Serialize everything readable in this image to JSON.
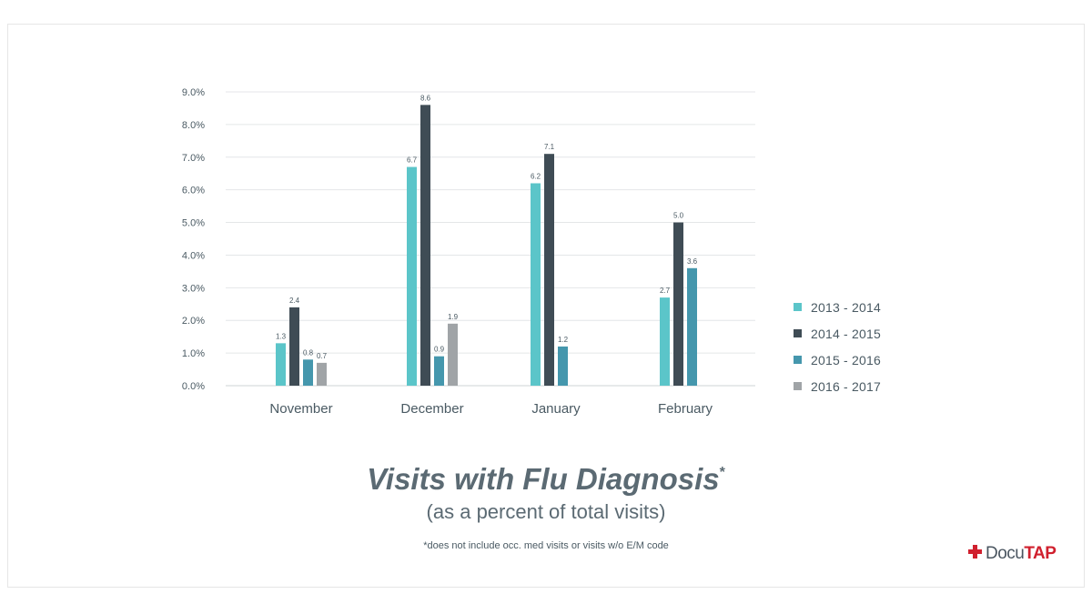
{
  "chart_data": {
    "type": "bar",
    "title": "Visits with Flu Diagnosis",
    "title_mark": "*",
    "subtitle": "(as a percent of total visits)",
    "footnote": "*does not include occ. med visits or visits w/o E/M code",
    "categories": [
      "November",
      "December",
      "January",
      "February"
    ],
    "ylim": [
      0,
      9
    ],
    "yticks": [
      "0.0%",
      "1.0%",
      "2.0%",
      "3.0%",
      "4.0%",
      "5.0%",
      "6.0%",
      "7.0%",
      "8.0%",
      "9.0%"
    ],
    "grid": true,
    "legend_position": "right",
    "series": [
      {
        "name": "2013 - 2014",
        "color": "#5bc5c9",
        "values": [
          1.3,
          6.7,
          6.2,
          2.7
        ]
      },
      {
        "name": "2014 - 2015",
        "color": "#3f4c55",
        "values": [
          2.4,
          8.6,
          7.1,
          5.0
        ]
      },
      {
        "name": "2015 - 2016",
        "color": "#4597ad",
        "values": [
          0.8,
          0.9,
          1.2,
          3.6
        ]
      },
      {
        "name": "2016 - 2017",
        "color": "#a0a4a7",
        "values": [
          0.7,
          1.9,
          null,
          null
        ]
      }
    ]
  },
  "logo": {
    "part1": "Docu",
    "part2": "TAP"
  }
}
